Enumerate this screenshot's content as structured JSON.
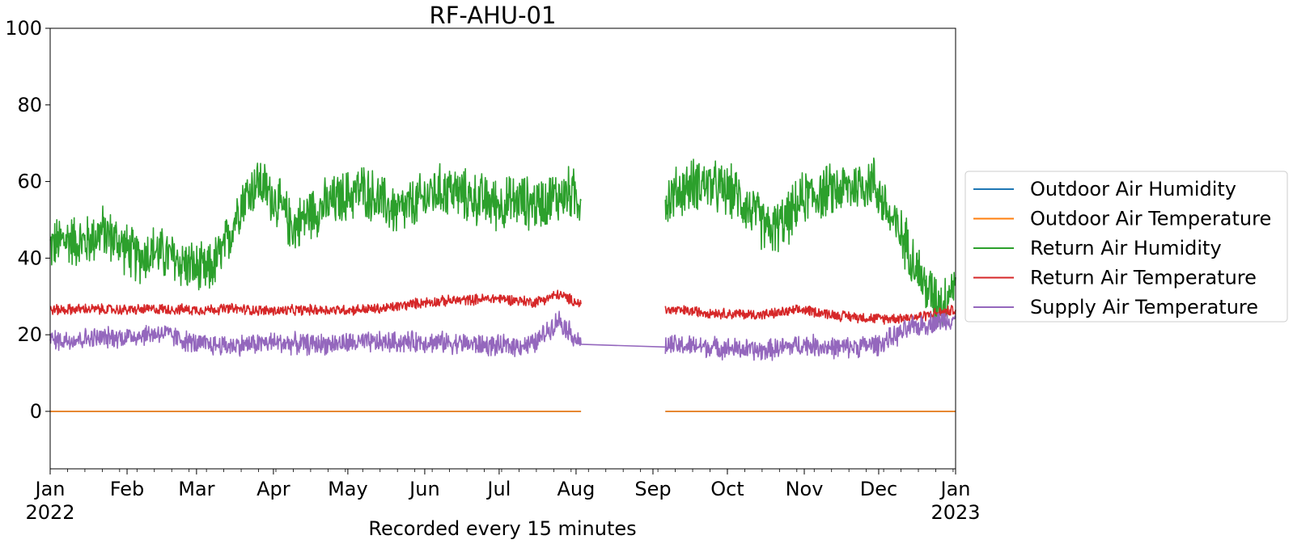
{
  "chart_data": {
    "type": "line",
    "title": "RF-AHU-01",
    "xlabel": "Recorded every 15 minutes",
    "ylabel": "",
    "xlim": [
      "2022-01-01",
      "2023-01-01"
    ],
    "ylim": [
      -15,
      100
    ],
    "grid": false,
    "legend_position": "outside-right",
    "y_ticks": [
      0,
      20,
      40,
      60,
      80,
      100
    ],
    "x_ticks": [
      {
        "date": "2022-01-01",
        "label": "Jan",
        "sublabel": "2022"
      },
      {
        "date": "2022-02-01",
        "label": "Feb",
        "sublabel": ""
      },
      {
        "date": "2022-03-01",
        "label": "Mar",
        "sublabel": ""
      },
      {
        "date": "2022-04-01",
        "label": "Apr",
        "sublabel": ""
      },
      {
        "date": "2022-05-01",
        "label": "May",
        "sublabel": ""
      },
      {
        "date": "2022-06-01",
        "label": "Jun",
        "sublabel": ""
      },
      {
        "date": "2022-07-01",
        "label": "Jul",
        "sublabel": ""
      },
      {
        "date": "2022-08-01",
        "label": "Aug",
        "sublabel": ""
      },
      {
        "date": "2022-09-01",
        "label": "Sep",
        "sublabel": ""
      },
      {
        "date": "2022-10-01",
        "label": "Oct",
        "sublabel": ""
      },
      {
        "date": "2022-11-01",
        "label": "Nov",
        "sublabel": ""
      },
      {
        "date": "2022-12-01",
        "label": "Dec",
        "sublabel": ""
      },
      {
        "date": "2023-01-01",
        "label": "Jan",
        "sublabel": "2023"
      }
    ],
    "series": [
      {
        "name": "Outdoor Air Humidity",
        "color": "#1f77b4",
        "segments": [
          {
            "x": [
              "2022-01-01",
              "2022-08-03"
            ],
            "y": [
              0,
              0
            ]
          },
          {
            "x": [
              "2022-09-06",
              "2023-01-01"
            ],
            "y": [
              0,
              0
            ]
          }
        ]
      },
      {
        "name": "Outdoor Air Temperature",
        "color": "#ff7f0e",
        "segments": [
          {
            "x": [
              "2022-01-01",
              "2022-08-03"
            ],
            "y": [
              0,
              0
            ]
          },
          {
            "x": [
              "2022-09-06",
              "2023-01-01"
            ],
            "y": [
              0,
              0
            ]
          }
        ]
      },
      {
        "name": "Return Air Humidity",
        "color": "#2ca02c",
        "segments": [
          {
            "x": [
              "2022-01-01",
              "2022-01-08",
              "2022-01-15",
              "2022-01-22",
              "2022-01-29",
              "2022-02-05",
              "2022-02-12",
              "2022-02-19",
              "2022-02-26",
              "2022-03-05",
              "2022-03-12",
              "2022-03-19",
              "2022-03-26",
              "2022-04-02",
              "2022-04-09",
              "2022-04-16",
              "2022-04-23",
              "2022-04-30",
              "2022-05-07",
              "2022-05-14",
              "2022-05-21",
              "2022-05-28",
              "2022-06-04",
              "2022-06-11",
              "2022-06-18",
              "2022-06-25",
              "2022-07-02",
              "2022-07-09",
              "2022-07-16",
              "2022-07-23",
              "2022-07-30",
              "2022-08-03"
            ],
            "y": [
              43,
              45,
              44,
              47,
              44,
              40,
              42,
              40,
              38,
              36,
              42,
              55,
              60,
              55,
              48,
              52,
              54,
              56,
              58,
              55,
              52,
              54,
              57,
              58,
              56,
              55,
              54,
              55,
              54,
              56,
              57,
              55
            ]
          },
          {
            "x": [
              "2022-09-06",
              "2022-09-13",
              "2022-09-20",
              "2022-09-27",
              "2022-10-04",
              "2022-10-11",
              "2022-10-18",
              "2022-10-25",
              "2022-11-01",
              "2022-11-08",
              "2022-11-15",
              "2022-11-22",
              "2022-11-29",
              "2022-12-06",
              "2022-12-13",
              "2022-12-20",
              "2022-12-27",
              "2023-01-01"
            ],
            "y": [
              55,
              58,
              60,
              58,
              57,
              52,
              47,
              50,
              56,
              57,
              58,
              59,
              60,
              50,
              43,
              32,
              28,
              35
            ]
          }
        ]
      },
      {
        "name": "Return Air Temperature",
        "color": "#d62728",
        "segments": [
          {
            "x": [
              "2022-01-01",
              "2022-01-15",
              "2022-02-01",
              "2022-02-15",
              "2022-03-01",
              "2022-03-15",
              "2022-04-01",
              "2022-04-15",
              "2022-05-01",
              "2022-05-15",
              "2022-06-01",
              "2022-06-15",
              "2022-07-01",
              "2022-07-15",
              "2022-07-25",
              "2022-08-03"
            ],
            "y": [
              26.5,
              26.7,
              26.5,
              26.7,
              26.5,
              26.8,
              26.2,
              26.5,
              26.5,
              26.8,
              28.5,
              29.0,
              29.5,
              28.5,
              30.5,
              28.0
            ]
          },
          {
            "x": [
              "2022-09-06",
              "2022-09-20",
              "2022-10-01",
              "2022-10-15",
              "2022-11-01",
              "2022-11-15",
              "2022-12-01",
              "2022-12-15",
              "2023-01-01"
            ],
            "y": [
              26.5,
              26.0,
              25.5,
              25.2,
              26.5,
              25.0,
              24.2,
              24.5,
              26.5
            ]
          }
        ]
      },
      {
        "name": "Supply Air Temperature",
        "color": "#9467bd",
        "segments": [
          {
            "x": [
              "2022-01-01",
              "2022-01-15",
              "2022-02-01",
              "2022-02-15",
              "2022-03-01",
              "2022-03-15",
              "2022-04-01",
              "2022-04-15",
              "2022-05-01",
              "2022-05-15",
              "2022-06-01",
              "2022-06-15",
              "2022-07-01",
              "2022-07-15",
              "2022-07-25",
              "2022-08-03",
              "2022-09-06"
            ],
            "y": [
              18.5,
              19.0,
              19.5,
              20.5,
              17.5,
              17.2,
              18.0,
              17.5,
              17.8,
              18.0,
              18.2,
              17.8,
              17.0,
              17.5,
              24.0,
              17.5,
              16.8
            ]
          },
          {
            "x": [
              "2022-09-06",
              "2022-09-20",
              "2022-10-01",
              "2022-10-15",
              "2022-11-01",
              "2022-11-15",
              "2022-12-01",
              "2022-12-15",
              "2023-01-01"
            ],
            "y": [
              17.2,
              17.0,
              16.5,
              15.8,
              17.5,
              16.5,
              17.5,
              22.0,
              24.5
            ]
          }
        ]
      }
    ]
  }
}
